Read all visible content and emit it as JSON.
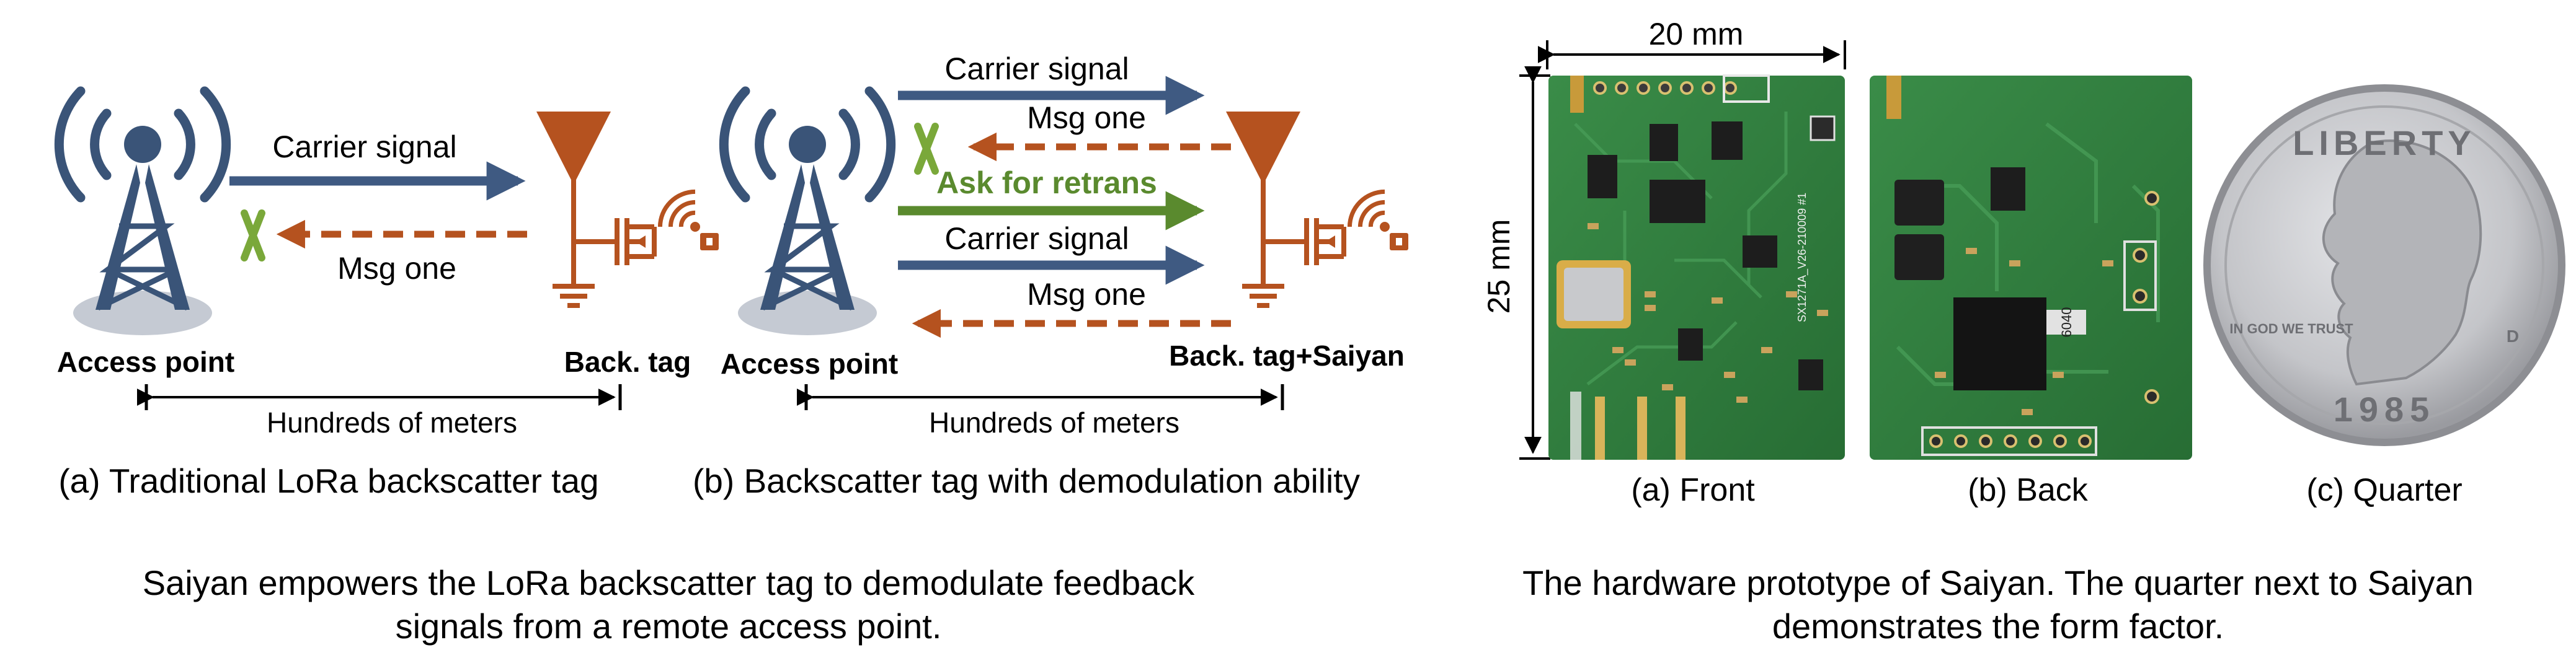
{
  "left_panel": {
    "diagram_a": {
      "carrier_label": "Carrier signal",
      "msg_label": "Msg one",
      "ap_label": "Access point",
      "tag_label": "Back. tag",
      "distance_label": "Hundreds of meters",
      "caption": "(a) Traditional LoRa backscatter tag"
    },
    "diagram_b": {
      "carrier_label_1": "Carrier signal",
      "msg_label_1": "Msg one",
      "retrans_label": "Ask for retrans",
      "carrier_label_2": "Carrier signal",
      "msg_label_2": "Msg one",
      "ap_label": "Access point",
      "tag_label": "Back. tag+Saiyan",
      "distance_label": "Hundreds of meters",
      "caption": "(b) Backscatter tag with demodulation ability"
    },
    "figure_caption_line1": "Saiyan empowers the LoRa backscatter tag to demodulate feedback",
    "figure_caption_line2": "signals from a remote access point."
  },
  "right_panel": {
    "width_dim": "20 mm",
    "height_dim": "25 mm",
    "photo_captions": [
      "(a) Front",
      "(b) Back",
      "(c) Quarter"
    ],
    "pcb_silkscreen": "SX1271A_V26-210009 #1",
    "chip_marking": "6040",
    "coin": {
      "top_text": "LIBERTY",
      "motto": "IN GOD WE TRUST",
      "year": "1985",
      "mint_mark": "D"
    },
    "figure_caption_line1": "The hardware prototype of Saiyan. The quarter next to Saiyan",
    "figure_caption_line2": "demonstrates the form factor."
  },
  "colors": {
    "tower_blue": "#3a5478",
    "signal_arrow_blue": "#3f5a82",
    "feedback_orange": "#b5521f",
    "retrans_green": "#5a8a2e",
    "lost_x_green": "#7aa83a",
    "pcb_green": "#2f7d3e",
    "coin_silver": "#c9cacd"
  }
}
